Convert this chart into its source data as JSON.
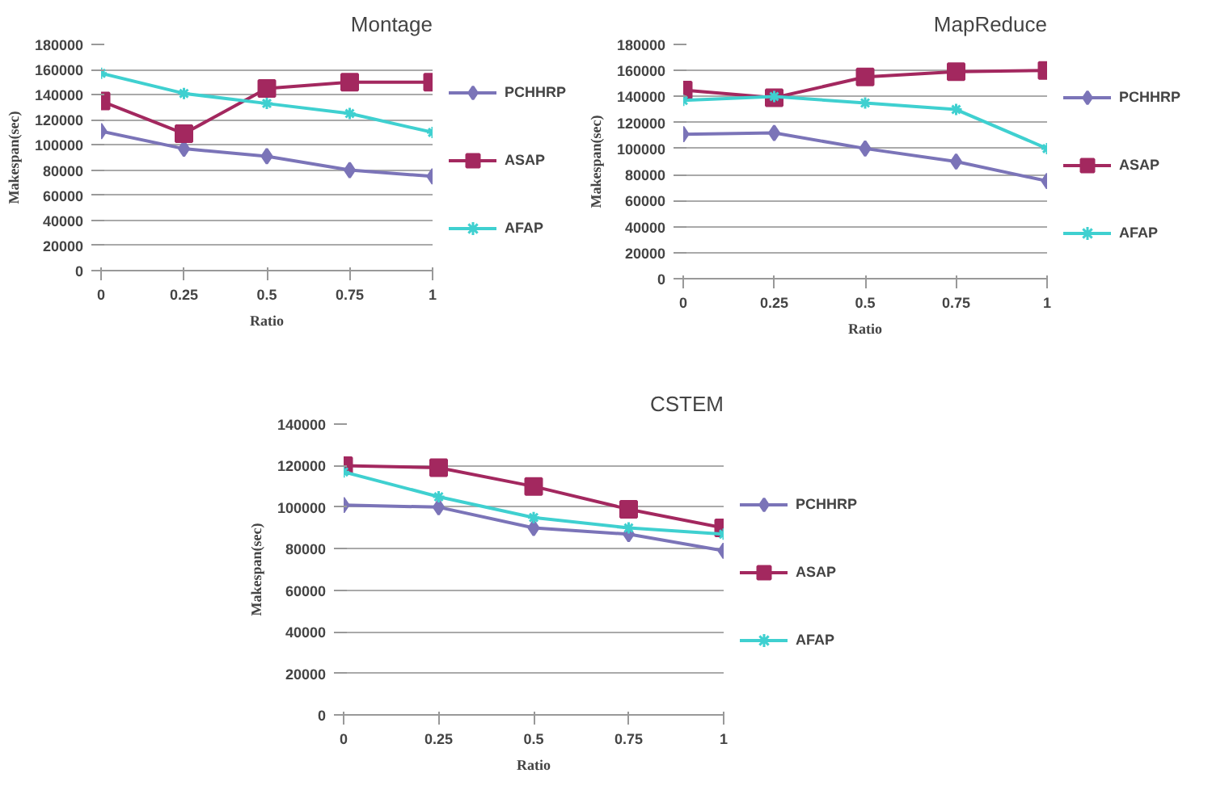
{
  "chart_data": [
    {
      "type": "line",
      "title": "Montage",
      "xlabel": "Ratio",
      "ylabel": "Makespan(sec)",
      "x": [
        0,
        0.25,
        0.5,
        0.75,
        1
      ],
      "xlim": [
        0,
        1
      ],
      "xticks": [
        0,
        0.25,
        0.5,
        0.75,
        1
      ],
      "ylim": [
        0,
        180000
      ],
      "yticks": [
        0,
        20000,
        40000,
        60000,
        80000,
        100000,
        120000,
        140000,
        160000,
        180000
      ],
      "grid": "y",
      "legend": "right",
      "series": [
        {
          "name": "PCHHRP",
          "color": "#7b74b8",
          "marker": "diamond",
          "values": [
            111000,
            97000,
            91000,
            80000,
            75000
          ]
        },
        {
          "name": "ASAP",
          "color": "#a3285f",
          "marker": "square",
          "values": [
            135000,
            109000,
            145000,
            150000,
            150000
          ]
        },
        {
          "name": "AFAP",
          "color": "#3fd0d0",
          "marker": "cross",
          "values": [
            157000,
            141000,
            133000,
            125000,
            110000
          ]
        }
      ]
    },
    {
      "type": "line",
      "title": "MapReduce",
      "xlabel": "Ratio",
      "ylabel": "Makespan(sec)",
      "x": [
        0,
        0.25,
        0.5,
        0.75,
        1
      ],
      "xlim": [
        0,
        1
      ],
      "xticks": [
        0,
        0.25,
        0.5,
        0.75,
        1
      ],
      "ylim": [
        0,
        180000
      ],
      "yticks": [
        0,
        20000,
        40000,
        60000,
        80000,
        100000,
        120000,
        140000,
        160000,
        180000
      ],
      "grid": "y",
      "legend": "right",
      "series": [
        {
          "name": "PCHHRP",
          "color": "#7b74b8",
          "marker": "diamond",
          "values": [
            111000,
            112000,
            100000,
            90000,
            75000
          ]
        },
        {
          "name": "ASAP",
          "color": "#a3285f",
          "marker": "square",
          "values": [
            145000,
            139000,
            155000,
            159000,
            160000
          ]
        },
        {
          "name": "AFAP",
          "color": "#3fd0d0",
          "marker": "cross",
          "values": [
            137000,
            140000,
            135000,
            130000,
            100000
          ]
        }
      ]
    },
    {
      "type": "line",
      "title": "CSTEM",
      "xlabel": "Ratio",
      "ylabel": "Makespan(sec)",
      "x": [
        0,
        0.25,
        0.5,
        0.75,
        1
      ],
      "xlim": [
        0,
        1
      ],
      "xticks": [
        0,
        0.25,
        0.5,
        0.75,
        1
      ],
      "ylim": [
        0,
        140000
      ],
      "yticks": [
        0,
        20000,
        40000,
        60000,
        80000,
        100000,
        120000,
        140000
      ],
      "grid": "y",
      "legend": "right",
      "series": [
        {
          "name": "PCHHRP",
          "color": "#7b74b8",
          "marker": "diamond",
          "values": [
            101000,
            100000,
            90000,
            87000,
            79000
          ]
        },
        {
          "name": "ASAP",
          "color": "#a3285f",
          "marker": "square",
          "values": [
            120000,
            119000,
            110000,
            99000,
            90000
          ]
        },
        {
          "name": "AFAP",
          "color": "#3fd0d0",
          "marker": "cross",
          "values": [
            117000,
            105000,
            95000,
            90000,
            87000
          ]
        }
      ]
    }
  ]
}
